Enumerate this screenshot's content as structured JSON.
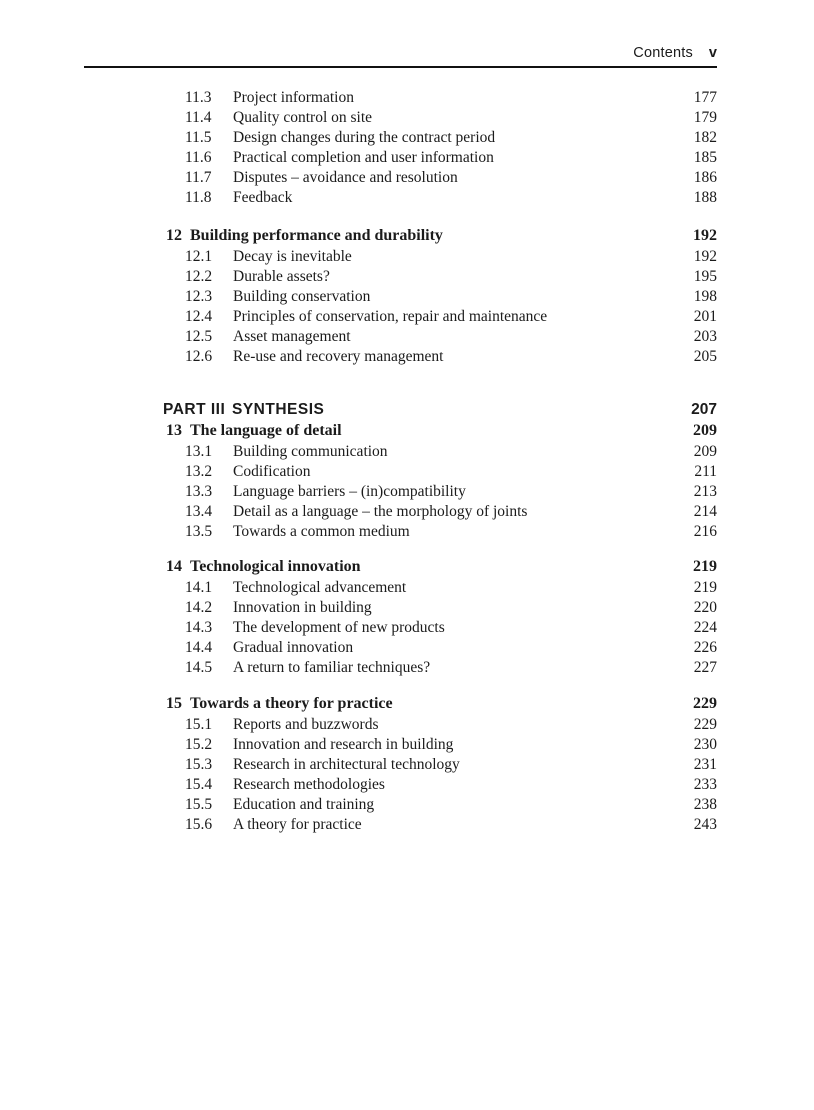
{
  "header": {
    "title": "Contents",
    "page": "v"
  },
  "toc": {
    "blocks": [
      {
        "type": "sections",
        "items": [
          {
            "num": "11.3",
            "title": "Project information",
            "page": "177"
          },
          {
            "num": "11.4",
            "title": "Quality control on site",
            "page": "179"
          },
          {
            "num": "11.5",
            "title": "Design changes during the contract period",
            "page": "182"
          },
          {
            "num": "11.6",
            "title": "Practical completion and user information",
            "page": "185"
          },
          {
            "num": "11.7",
            "title": "Disputes – avoidance and resolution",
            "page": "186"
          },
          {
            "num": "11.8",
            "title": "Feedback",
            "page": "188"
          }
        ]
      },
      {
        "type": "chapter",
        "num": "12",
        "title": "Building performance and durability",
        "page": "192",
        "items": [
          {
            "num": "12.1",
            "title": "Decay is inevitable",
            "page": "192"
          },
          {
            "num": "12.2",
            "title": "Durable assets?",
            "page": "195"
          },
          {
            "num": "12.3",
            "title": "Building conservation",
            "page": "198"
          },
          {
            "num": "12.4",
            "title": "Principles of conservation, repair and maintenance",
            "page": "201"
          },
          {
            "num": "12.5",
            "title": "Asset management",
            "page": "203"
          },
          {
            "num": "12.6",
            "title": "Re-use and recovery management",
            "page": "205"
          }
        ]
      },
      {
        "type": "part",
        "label": "PART III",
        "title": "SYNTHESIS",
        "page": "207"
      },
      {
        "type": "chapter",
        "num": "13",
        "title": "The language of detail",
        "page": "209",
        "items": [
          {
            "num": "13.1",
            "title": "Building communication",
            "page": "209"
          },
          {
            "num": "13.2",
            "title": "Codification",
            "page": "211"
          },
          {
            "num": "13.3",
            "title": "Language barriers – (in)compatibility",
            "page": "213"
          },
          {
            "num": "13.4",
            "title": "Detail as a language – the morphology of joints",
            "page": "214"
          },
          {
            "num": "13.5",
            "title": "Towards a common medium",
            "page": "216"
          }
        ]
      },
      {
        "type": "chapter",
        "num": "14",
        "title": "Technological innovation",
        "page": "219",
        "items": [
          {
            "num": "14.1",
            "title": "Technological advancement",
            "page": "219"
          },
          {
            "num": "14.2",
            "title": "Innovation in building",
            "page": "220"
          },
          {
            "num": "14.3",
            "title": "The development of new products",
            "page": "224"
          },
          {
            "num": "14.4",
            "title": "Gradual innovation",
            "page": "226"
          },
          {
            "num": "14.5",
            "title": "A return to familiar techniques?",
            "page": "227"
          }
        ]
      },
      {
        "type": "chapter",
        "num": "15",
        "title": "Towards a theory for practice",
        "page": "229",
        "items": [
          {
            "num": "15.1",
            "title": "Reports and buzzwords",
            "page": "229"
          },
          {
            "num": "15.2",
            "title": "Innovation and research in building",
            "page": "230"
          },
          {
            "num": "15.3",
            "title": "Research in architectural technology",
            "page": "231"
          },
          {
            "num": "15.4",
            "title": "Research methodologies",
            "page": "233"
          },
          {
            "num": "15.5",
            "title": "Education and training",
            "page": "238"
          },
          {
            "num": "15.6",
            "title": "A theory for practice",
            "page": "243"
          }
        ]
      }
    ]
  }
}
